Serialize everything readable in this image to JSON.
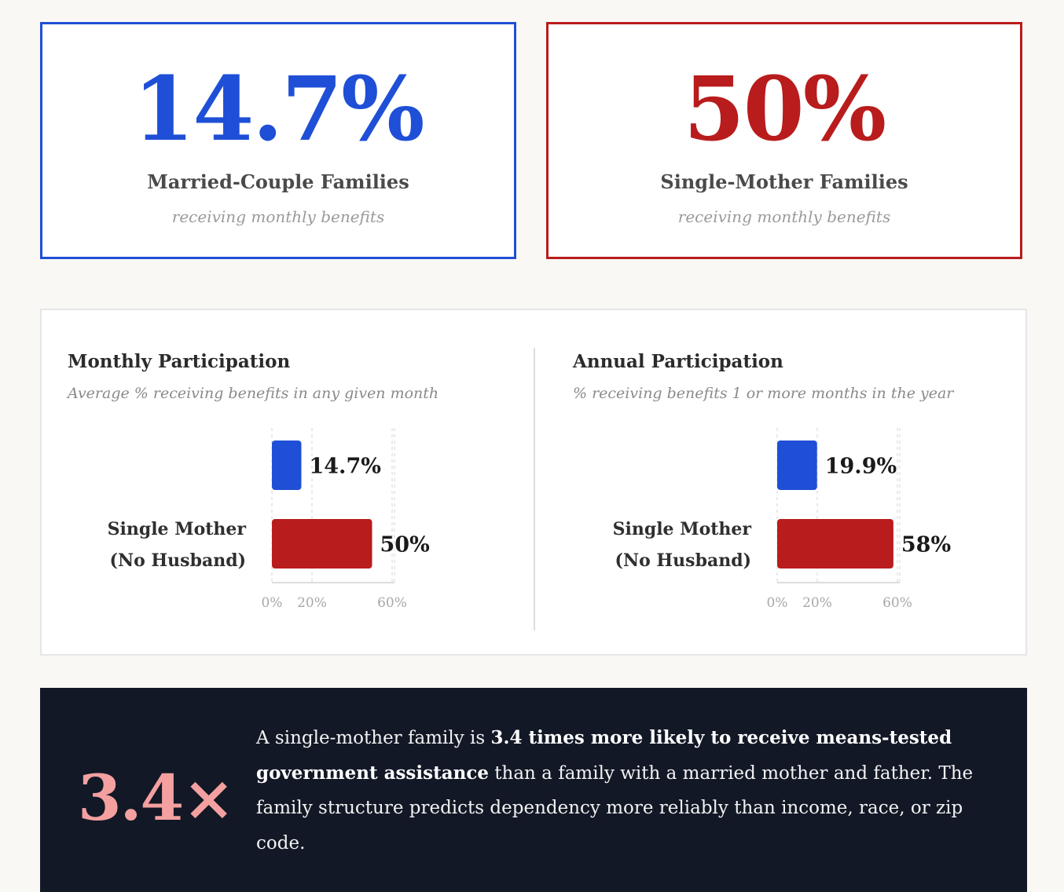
{
  "stats": [
    {
      "value": "14.7%",
      "label": "Married-Couple Families",
      "sublabel": "receiving monthly benefits",
      "color": "#1f4fd6"
    },
    {
      "value": "50%",
      "label": "Single-Mother Families",
      "sublabel": "receiving monthly benefits",
      "color": "#b91c1c"
    }
  ],
  "chart_data": [
    {
      "type": "bar",
      "orientation": "horizontal",
      "title": "Monthly Participation",
      "subtitle": "Average % receiving benefits in any given month",
      "categories": [
        "",
        "Single Mother (No Husband)"
      ],
      "category_lines": [
        [],
        [
          "Single Mother",
          "(No Husband)"
        ]
      ],
      "values": [
        14.7,
        50
      ],
      "value_labels": [
        "14.7%",
        "50%"
      ],
      "bar_colors": [
        "#1f4fd6",
        "#b91c1c"
      ],
      "xlim": [
        0,
        60
      ],
      "xticks": [
        0,
        20,
        60
      ],
      "xtick_labels": [
        "0%",
        "20%",
        "60%"
      ],
      "grid": true
    },
    {
      "type": "bar",
      "orientation": "horizontal",
      "title": "Annual Participation",
      "subtitle": "% receiving benefits 1 or more months in the year",
      "categories": [
        "",
        "Single Mother (No Husband)"
      ],
      "category_lines": [
        [],
        [
          "Single Mother",
          "(No Husband)"
        ]
      ],
      "values": [
        19.9,
        58
      ],
      "value_labels": [
        "19.9%",
        "58%"
      ],
      "bar_colors": [
        "#1f4fd6",
        "#b91c1c"
      ],
      "xlim": [
        0,
        60
      ],
      "xticks": [
        0,
        20,
        60
      ],
      "xtick_labels": [
        "0%",
        "20%",
        "60%"
      ],
      "grid": true
    }
  ],
  "callout": {
    "multiplier": "3.4×",
    "multiplier_color": "#f4a0a0",
    "text_before": "A single-mother family is ",
    "text_bold": "3.4 times more likely to receive means-tested government assistance",
    "text_after": " than a family with a married mother and father. The family structure predicts dependency more reliably than income, race, or zip code."
  }
}
